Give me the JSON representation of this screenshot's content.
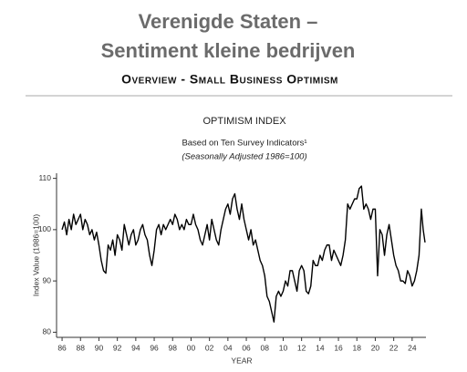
{
  "header": {
    "title_line1": "Verenigde Staten –",
    "title_line2": "Sentiment kleine bedrijven",
    "subtitle": "Overview - Small Business Optimism"
  },
  "chart_data": {
    "type": "line",
    "title": "OPTIMISM INDEX",
    "subtitle": "Based on Ten Survey Indicators¹",
    "note": "(Seasonally Adjusted 1986=100)",
    "y_label": "Index Value (1986=100)",
    "x_label": "YEAR",
    "color": "#000000",
    "grid": false,
    "xlim": [
      1985.4,
      2025.5
    ],
    "ylim": [
      79,
      111
    ],
    "yticks": [
      80,
      90,
      100,
      110
    ],
    "xticks": [
      {
        "value": 1986,
        "label": "86"
      },
      {
        "value": 1988,
        "label": "88"
      },
      {
        "value": 1990,
        "label": "90"
      },
      {
        "value": 1992,
        "label": "92"
      },
      {
        "value": 1994,
        "label": "94"
      },
      {
        "value": 1996,
        "label": "96"
      },
      {
        "value": 1998,
        "label": "98"
      },
      {
        "value": 2000,
        "label": "00"
      },
      {
        "value": 2002,
        "label": "02"
      },
      {
        "value": 2004,
        "label": "04"
      },
      {
        "value": 2006,
        "label": "06"
      },
      {
        "value": 2008,
        "label": "08"
      },
      {
        "value": 2010,
        "label": "10"
      },
      {
        "value": 2012,
        "label": "12"
      },
      {
        "value": 2014,
        "label": "14"
      },
      {
        "value": 2016,
        "label": "16"
      },
      {
        "value": 2018,
        "label": "18"
      },
      {
        "value": 2020,
        "label": "20"
      },
      {
        "value": 2022,
        "label": "22"
      },
      {
        "value": 2024,
        "label": "24"
      }
    ],
    "x": [
      1986,
      1986.25,
      1986.5,
      1986.75,
      1987,
      1987.25,
      1987.5,
      1987.75,
      1988,
      1988.25,
      1988.5,
      1988.75,
      1989,
      1989.25,
      1989.5,
      1989.75,
      1990,
      1990.25,
      1990.5,
      1990.75,
      1991,
      1991.25,
      1991.5,
      1991.75,
      1992,
      1992.25,
      1992.5,
      1992.75,
      1993,
      1993.25,
      1993.5,
      1993.75,
      1994,
      1994.25,
      1994.5,
      1994.75,
      1995,
      1995.25,
      1995.5,
      1995.75,
      1996,
      1996.25,
      1996.5,
      1996.75,
      1997,
      1997.25,
      1997.5,
      1997.75,
      1998,
      1998.25,
      1998.5,
      1998.75,
      1999,
      1999.25,
      1999.5,
      1999.75,
      2000,
      2000.25,
      2000.5,
      2000.75,
      2001,
      2001.25,
      2001.5,
      2001.75,
      2002,
      2002.25,
      2002.5,
      2002.75,
      2003,
      2003.25,
      2003.5,
      2003.75,
      2004,
      2004.25,
      2004.5,
      2004.75,
      2005,
      2005.25,
      2005.5,
      2005.75,
      2006,
      2006.25,
      2006.5,
      2006.75,
      2007,
      2007.25,
      2007.5,
      2007.75,
      2008,
      2008.25,
      2008.5,
      2008.75,
      2009,
      2009.25,
      2009.5,
      2009.75,
      2010,
      2010.25,
      2010.5,
      2010.75,
      2011,
      2011.25,
      2011.5,
      2011.75,
      2012,
      2012.25,
      2012.5,
      2012.75,
      2013,
      2013.25,
      2013.5,
      2013.75,
      2014,
      2014.25,
      2014.5,
      2014.75,
      2015,
      2015.25,
      2015.5,
      2015.75,
      2016,
      2016.25,
      2016.5,
      2016.75,
      2017,
      2017.25,
      2017.5,
      2017.75,
      2018,
      2018.25,
      2018.5,
      2018.75,
      2019,
      2019.25,
      2019.5,
      2019.75,
      2020,
      2020.25,
      2020.5,
      2020.75,
      2021,
      2021.25,
      2021.5,
      2021.75,
      2022,
      2022.25,
      2022.5,
      2022.75,
      2023,
      2023.25,
      2023.5,
      2023.75,
      2024,
      2024.25,
      2024.5,
      2024.75,
      2025,
      2025.2,
      2025.4
    ],
    "values": [
      100,
      101.5,
      99,
      102,
      100,
      103,
      101,
      102,
      103,
      100,
      102,
      101,
      99,
      100,
      98,
      99.5,
      97,
      94,
      92,
      91.5,
      97,
      96,
      98,
      95,
      99,
      98,
      96,
      101,
      99,
      97,
      99,
      100,
      97,
      98,
      100,
      101,
      99,
      98,
      95,
      93,
      96,
      100,
      101,
      99,
      101,
      100,
      101,
      102,
      101,
      103,
      102,
      100,
      101,
      100,
      102,
      101,
      101,
      103,
      101,
      100,
      98,
      97,
      99,
      101,
      98,
      102,
      100,
      98,
      97,
      100,
      102,
      104,
      105,
      103,
      106,
      107,
      104,
      102,
      105,
      102,
      100,
      98,
      100,
      97,
      98,
      96,
      94,
      93,
      91,
      87,
      86,
      84,
      82,
      87,
      88,
      87,
      88,
      90,
      89,
      92,
      92,
      90,
      88,
      92,
      93,
      92,
      88,
      87.5,
      89,
      94,
      93,
      93,
      95,
      94,
      96,
      97,
      97,
      94,
      96,
      95,
      94,
      93,
      95,
      98,
      105,
      104,
      105,
      106,
      106,
      108,
      108.5,
      104,
      105,
      104,
      102,
      104,
      104,
      91,
      100,
      99,
      95,
      99,
      101,
      98,
      95,
      93,
      92,
      90,
      90,
      89.5,
      92,
      91,
      89,
      90,
      92,
      95,
      104,
      100,
      97.5
    ]
  }
}
